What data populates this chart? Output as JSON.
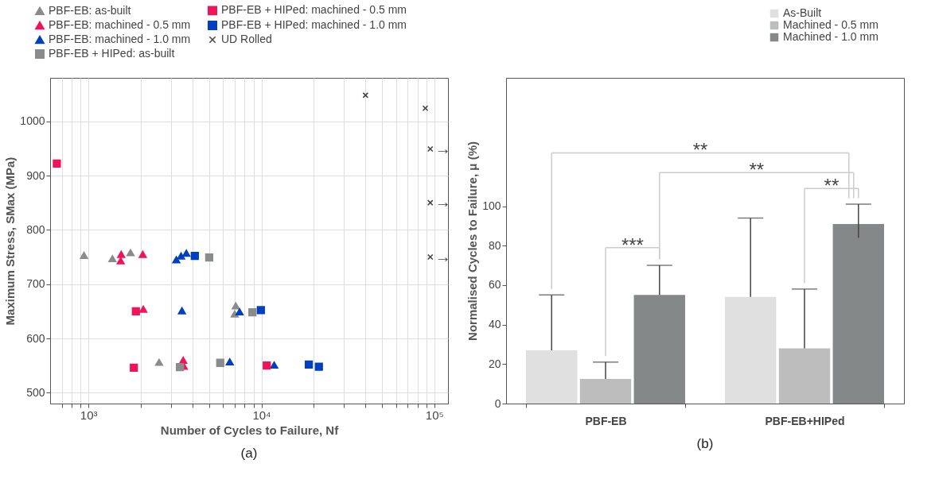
{
  "chart_data": [
    {
      "type": "scatter",
      "title": "(a)",
      "xlabel": "Number of Cycles to Failure, Nf",
      "ylabel": "Maximum Stress, SMax (MPa)",
      "log": "x",
      "xlim": [
        600,
        120000
      ],
      "ylim": [
        480,
        1080
      ],
      "xticks": [
        {
          "value": 700,
          "label": null
        },
        {
          "value": 800,
          "label": null
        },
        {
          "value": 900,
          "label": null
        },
        {
          "value": 1000,
          "label": "10³"
        },
        {
          "value": 2000,
          "label": null
        },
        {
          "value": 3000,
          "label": null
        },
        {
          "value": 4000,
          "label": null
        },
        {
          "value": 5000,
          "label": null
        },
        {
          "value": 6000,
          "label": null
        },
        {
          "value": 7000,
          "label": null
        },
        {
          "value": 8000,
          "label": null
        },
        {
          "value": 9000,
          "label": null
        },
        {
          "value": 10000,
          "label": "10⁴"
        },
        {
          "value": 20000,
          "label": null
        },
        {
          "value": 30000,
          "label": null
        },
        {
          "value": 40000,
          "label": null
        },
        {
          "value": 50000,
          "label": null
        },
        {
          "value": 60000,
          "label": null
        },
        {
          "value": 70000,
          "label": null
        },
        {
          "value": 80000,
          "label": null
        },
        {
          "value": 90000,
          "label": null
        },
        {
          "value": 100000,
          "label": "10⁵"
        }
      ],
      "yticks": [
        500,
        600,
        700,
        800,
        900,
        1000
      ],
      "grid": true,
      "legend": "top left",
      "series": [
        {
          "name": "PBF-EB: as-built",
          "color": "#8a8c8c",
          "marker": "triangle",
          "x": [
            942,
            1375,
            1750,
            2560,
            7110,
            7010
          ],
          "values": [
            753,
            747,
            758,
            556,
            660,
            645
          ]
        },
        {
          "name": "PBF-EB: machined - 0.5 mm",
          "color": "#f0145a",
          "marker": "triangle",
          "x": [
            1546,
            1535,
            2060,
            2075,
            3530,
            3560
          ],
          "values": [
            755,
            743,
            755,
            654,
            560,
            549
          ]
        },
        {
          "name": "PBF-EB: machined - 1.0 mm",
          "color": "#0040c0",
          "marker": "triangle",
          "x": [
            3220,
            3430,
            3680,
            3470,
            7480,
            6560,
            11860
          ],
          "values": [
            745,
            752,
            757,
            651,
            649,
            557,
            551
          ]
        },
        {
          "name": "PBF-EB + HIPed: as-built",
          "color": "#8a8c8c",
          "marker": "square",
          "x": [
            4990,
            8870,
            3380,
            5780
          ],
          "values": [
            749,
            648,
            547,
            555
          ]
        },
        {
          "name": "PBF-EB + HIPed: machined - 0.5 mm",
          "color": "#f0145a",
          "marker": "square",
          "x": [
            656,
            1880,
            1830,
            10740
          ],
          "values": [
            922,
            650,
            546,
            550
          ]
        },
        {
          "name": "PBF-EB + HIPed: machined - 1.0 mm",
          "color": "#0040c0",
          "marker": "square",
          "x": [
            4120,
            9930,
            18800,
            21500
          ],
          "values": [
            752,
            652,
            552,
            548
          ]
        },
        {
          "name": "UD Rolled",
          "color": "#444444",
          "marker": "cross",
          "x": [
            40000,
            88700,
            94800,
            94800,
            94800
          ],
          "values": [
            1048,
            1024,
            949,
            850,
            750
          ]
        }
      ],
      "annotations": [
        "→",
        "→",
        "→"
      ]
    },
    {
      "type": "bar",
      "title": "(b)",
      "ylabel": "Normalised Cycles to Failure, μ (%)",
      "categories": [
        "PBF-EB",
        "PBF-EB+HIPed"
      ],
      "ylim": [
        0,
        165
      ],
      "yticks": [
        0,
        20,
        40,
        60,
        80,
        100
      ],
      "legend": "top right",
      "series": [
        {
          "name": "As-Built",
          "color": "#e0e0e0",
          "values": [
            27,
            54
          ],
          "errors": [
            [
              27,
              55
            ],
            [
              54,
              94
            ]
          ]
        },
        {
          "name": "Machined - 0.5 mm",
          "color": "#bdbdbd",
          "values": [
            12.5,
            28
          ],
          "errors": [
            [
              12.5,
              21
            ],
            [
              28,
              58
            ]
          ]
        },
        {
          "name": "Machined - 1.0 mm",
          "color": "#848888",
          "values": [
            55,
            91
          ],
          "errors": [
            [
              55,
              70
            ],
            [
              84,
              101
            ]
          ]
        }
      ],
      "annotations": [
        "***",
        "**",
        "**",
        "**"
      ]
    }
  ]
}
